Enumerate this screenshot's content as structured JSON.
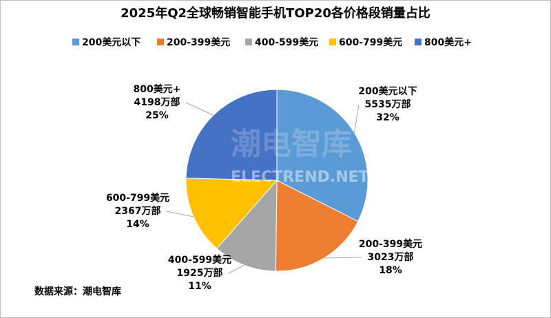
{
  "chart_data": {
    "type": "pie",
    "title": "2025年Q2全球畅销智能手机TOP20各价格段销量占比",
    "categories": [
      "200美元以下",
      "200-399美元",
      "400-599美元",
      "600-799美元",
      "800美元+"
    ],
    "values": [
      5535,
      3023,
      1925,
      2367,
      4198
    ],
    "value_labels": [
      "5535万部",
      "3023万部",
      "1925万部",
      "2367万部",
      "4198万部"
    ],
    "percent_labels": [
      "32%",
      "18%",
      "11%",
      "14%",
      "25%"
    ],
    "colors": [
      "#5b9bd5",
      "#ed7d31",
      "#a5a5a5",
      "#ffc000",
      "#4472c4"
    ],
    "legend": "top",
    "source": "数据来源：潮电智库",
    "watermark": "潮电智库",
    "watermark_sub": "ELECTREND.NET"
  }
}
